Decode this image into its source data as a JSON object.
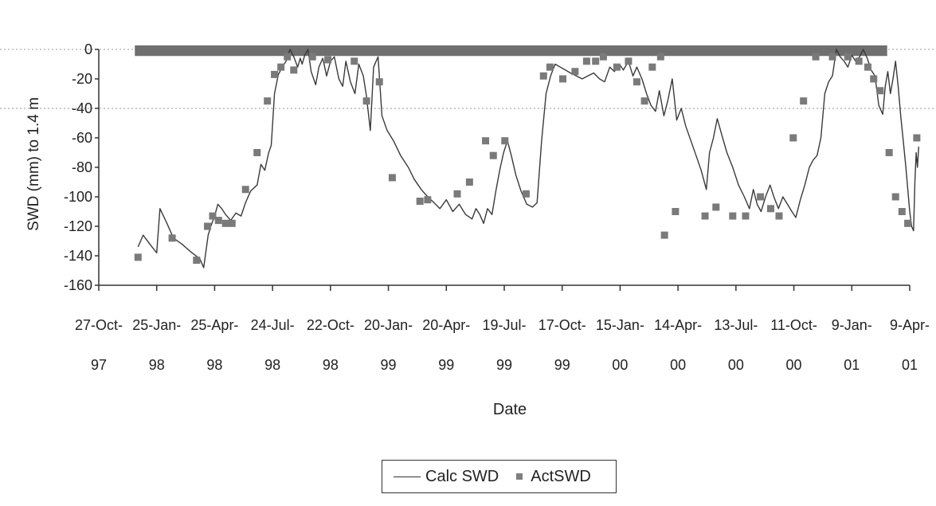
{
  "colors": {
    "calc_line": "#3a3a3a",
    "act_marker": "#7a7a7a",
    "band": "#6f6f6f",
    "axis": "#333333",
    "grid": "#999999"
  },
  "chart_data": {
    "type": "line",
    "title": "",
    "xlabel": "Date",
    "ylabel": "SWD (mm) to 1.4 m",
    "x_tick_labels": [
      [
        "27-Oct-",
        "97"
      ],
      [
        "25-Jan-",
        "98"
      ],
      [
        "25-Apr-",
        "98"
      ],
      [
        "24-Jul-",
        "98"
      ],
      [
        "22-Oct-",
        "98"
      ],
      [
        "20-Jan-",
        "99"
      ],
      [
        "20-Apr-",
        "99"
      ],
      [
        "19-Jul-",
        "99"
      ],
      [
        "17-Oct-",
        "99"
      ],
      [
        "15-Jan-",
        "00"
      ],
      [
        "14-Apr-",
        "00"
      ],
      [
        "13-Jul-",
        "00"
      ],
      [
        "11-Oct-",
        "00"
      ],
      [
        "9-Jan-",
        "01"
      ],
      [
        "9-Apr-",
        "01"
      ]
    ],
    "y_ticks": [
      0,
      -20,
      -40,
      -60,
      -80,
      -100,
      -120,
      -140,
      -160
    ],
    "ylim": [
      -160,
      0
    ],
    "xlim": [
      "1997-10-27",
      "2001-04-09"
    ],
    "legend_position": "bottom",
    "band": {
      "from": "1997-12-22",
      "to": "2001-03-05",
      "y_top": 0,
      "y_bottom": -5
    },
    "series": [
      {
        "name": "Calc SWD",
        "style": "line",
        "points": [
          [
            "1997-12-27",
            -134
          ],
          [
            "1998-01-04",
            -126
          ],
          [
            "1998-01-16",
            -133
          ],
          [
            "1998-01-25",
            -138
          ],
          [
            "1998-01-30",
            -108
          ],
          [
            "1998-02-10",
            -118
          ],
          [
            "1998-02-20",
            -128
          ],
          [
            "1998-03-05",
            -132
          ],
          [
            "1998-03-18",
            -137
          ],
          [
            "1998-04-02",
            -142
          ],
          [
            "1998-04-08",
            -148
          ],
          [
            "1998-04-15",
            -126
          ],
          [
            "1998-04-19",
            -120
          ],
          [
            "1998-04-25",
            -113
          ],
          [
            "1998-04-30",
            -105
          ],
          [
            "1998-05-06",
            -108
          ],
          [
            "1998-05-12",
            -112
          ],
          [
            "1998-05-20",
            -116
          ],
          [
            "1998-05-28",
            -111
          ],
          [
            "1998-06-05",
            -113
          ],
          [
            "1998-06-12",
            -104
          ],
          [
            "1998-06-20",
            -96
          ],
          [
            "1998-06-30",
            -92
          ],
          [
            "1998-07-06",
            -78
          ],
          [
            "1998-07-12",
            -82
          ],
          [
            "1998-07-18",
            -70
          ],
          [
            "1998-07-22",
            -65
          ],
          [
            "1998-07-27",
            -30
          ],
          [
            "1998-08-02",
            -17
          ],
          [
            "1998-08-08",
            -12
          ],
          [
            "1998-08-14",
            -8
          ],
          [
            "1998-08-20",
            0
          ],
          [
            "1998-08-26",
            -5
          ],
          [
            "1998-09-01",
            -12
          ],
          [
            "1998-09-05",
            -6
          ],
          [
            "1998-09-08",
            -10
          ],
          [
            "1998-09-12",
            -4
          ],
          [
            "1998-09-17",
            0
          ],
          [
            "1998-09-22",
            -15
          ],
          [
            "1998-09-29",
            -24
          ],
          [
            "1998-10-04",
            -12
          ],
          [
            "1998-10-10",
            -6
          ],
          [
            "1998-10-16",
            -18
          ],
          [
            "1998-10-22",
            -8
          ],
          [
            "1998-10-28",
            -5
          ],
          [
            "1998-11-04",
            -20
          ],
          [
            "1998-11-10",
            -25
          ],
          [
            "1998-11-15",
            -8
          ],
          [
            "1998-11-22",
            -22
          ],
          [
            "1998-11-29",
            -30
          ],
          [
            "1998-12-05",
            -10
          ],
          [
            "1998-12-12",
            -18
          ],
          [
            "1998-12-17",
            -32
          ],
          [
            "1998-12-23",
            -55
          ],
          [
            "1998-12-28",
            -12
          ],
          [
            "1999-01-04",
            -5
          ],
          [
            "1999-01-10",
            -45
          ],
          [
            "1999-01-18",
            -55
          ],
          [
            "1999-01-28",
            -62
          ],
          [
            "1999-02-08",
            -72
          ],
          [
            "1999-02-20",
            -80
          ],
          [
            "1999-03-01",
            -88
          ],
          [
            "1999-03-12",
            -95
          ],
          [
            "1999-03-22",
            -100
          ],
          [
            "1999-04-01",
            -104
          ],
          [
            "1999-04-10",
            -108
          ],
          [
            "1999-04-20",
            -102
          ],
          [
            "1999-04-30",
            -110
          ],
          [
            "1999-05-10",
            -105
          ],
          [
            "1999-05-20",
            -112
          ],
          [
            "1999-05-30",
            -115
          ],
          [
            "1999-06-05",
            -108
          ],
          [
            "1999-06-11",
            -112
          ],
          [
            "1999-06-17",
            -118
          ],
          [
            "1999-06-23",
            -108
          ],
          [
            "1999-06-30",
            -112
          ],
          [
            "1999-07-06",
            -96
          ],
          [
            "1999-07-12",
            -82
          ],
          [
            "1999-07-18",
            -70
          ],
          [
            "1999-07-24",
            -62
          ],
          [
            "1999-07-30",
            -72
          ],
          [
            "1999-08-06",
            -85
          ],
          [
            "1999-08-14",
            -96
          ],
          [
            "1999-08-23",
            -105
          ],
          [
            "1999-09-01",
            -107
          ],
          [
            "1999-09-08",
            -104
          ],
          [
            "1999-09-15",
            -62
          ],
          [
            "1999-09-22",
            -30
          ],
          [
            "1999-09-29",
            -18
          ],
          [
            "1999-10-06",
            -10
          ],
          [
            "1999-10-14",
            -12
          ],
          [
            "1999-10-22",
            -14
          ],
          [
            "1999-10-30",
            -16
          ],
          [
            "1999-11-08",
            -18
          ],
          [
            "1999-11-17",
            -20
          ],
          [
            "1999-11-26",
            -18
          ],
          [
            "1999-12-05",
            -16
          ],
          [
            "1999-12-14",
            -20
          ],
          [
            "1999-12-22",
            -22
          ],
          [
            "1999-12-30",
            -12
          ],
          [
            "2000-01-06",
            -15
          ],
          [
            "2000-01-14",
            -10
          ],
          [
            "2000-01-20",
            -14
          ],
          [
            "2000-01-28",
            -8
          ],
          [
            "2000-02-04",
            -18
          ],
          [
            "2000-02-10",
            -12
          ],
          [
            "2000-02-18",
            -20
          ],
          [
            "2000-02-25",
            -30
          ],
          [
            "2000-03-03",
            -38
          ],
          [
            "2000-03-10",
            -42
          ],
          [
            "2000-03-16",
            -28
          ],
          [
            "2000-03-23",
            -45
          ],
          [
            "2000-03-29",
            -35
          ],
          [
            "2000-04-05",
            -20
          ],
          [
            "2000-04-12",
            -48
          ],
          [
            "2000-04-19",
            -40
          ],
          [
            "2000-04-26",
            -52
          ],
          [
            "2000-05-04",
            -62
          ],
          [
            "2000-05-12",
            -72
          ],
          [
            "2000-05-20",
            -82
          ],
          [
            "2000-05-28",
            -95
          ],
          [
            "2000-06-02",
            -70
          ],
          [
            "2000-06-08",
            -60
          ],
          [
            "2000-06-14",
            -47
          ],
          [
            "2000-06-21",
            -58
          ],
          [
            "2000-06-29",
            -70
          ],
          [
            "2000-07-08",
            -80
          ],
          [
            "2000-07-17",
            -92
          ],
          [
            "2000-07-26",
            -100
          ],
          [
            "2000-08-03",
            -108
          ],
          [
            "2000-08-09",
            -95
          ],
          [
            "2000-08-15",
            -105
          ],
          [
            "2000-08-21",
            -110
          ],
          [
            "2000-08-28",
            -100
          ],
          [
            "2000-09-04",
            -92
          ],
          [
            "2000-09-10",
            -100
          ],
          [
            "2000-09-17",
            -108
          ],
          [
            "2000-09-24",
            -100
          ],
          [
            "2000-10-01",
            -105
          ],
          [
            "2000-10-08",
            -110
          ],
          [
            "2000-10-14",
            -114
          ],
          [
            "2000-10-21",
            -102
          ],
          [
            "2000-10-28",
            -92
          ],
          [
            "2000-11-04",
            -80
          ],
          [
            "2000-11-10",
            -75
          ],
          [
            "2000-11-16",
            -72
          ],
          [
            "2000-11-22",
            -60
          ],
          [
            "2000-11-28",
            -30
          ],
          [
            "2000-12-04",
            -22
          ],
          [
            "2000-12-10",
            -18
          ],
          [
            "2000-12-16",
            0
          ],
          [
            "2000-12-22",
            -5
          ],
          [
            "2000-12-28",
            -8
          ],
          [
            "2001-01-03",
            -12
          ],
          [
            "2001-01-09",
            -4
          ],
          [
            "2001-01-15",
            -8
          ],
          [
            "2001-01-21",
            -5
          ],
          [
            "2001-01-27",
            0
          ],
          [
            "2001-02-02",
            -6
          ],
          [
            "2001-02-08",
            -14
          ],
          [
            "2001-02-14",
            -18
          ],
          [
            "2001-02-20",
            -38
          ],
          [
            "2001-02-26",
            -44
          ],
          [
            "2001-03-02",
            -25
          ],
          [
            "2001-03-06",
            -15
          ],
          [
            "2001-03-10",
            -30
          ],
          [
            "2001-03-14",
            -20
          ],
          [
            "2001-03-18",
            -8
          ],
          [
            "2001-03-22",
            -25
          ],
          [
            "2001-03-26",
            -45
          ],
          [
            "2001-03-30",
            -62
          ],
          [
            "2001-04-03",
            -80
          ],
          [
            "2001-04-06",
            -95
          ],
          [
            "2001-04-09",
            -110
          ],
          [
            "2001-04-12",
            -120
          ],
          [
            "2001-04-15",
            -123
          ],
          [
            "2001-04-17",
            -90
          ],
          [
            "2001-04-19",
            -70
          ],
          [
            "2001-04-21",
            -80
          ],
          [
            "2001-04-23",
            -66
          ]
        ]
      },
      {
        "name": "ActSWD",
        "style": "marker",
        "points": [
          [
            "1997-12-27",
            -141
          ],
          [
            "1998-02-18",
            -128
          ],
          [
            "1998-03-28",
            -143
          ],
          [
            "1998-04-14",
            -120
          ],
          [
            "1998-04-22",
            -113
          ],
          [
            "1998-05-01",
            -116
          ],
          [
            "1998-05-12",
            -118
          ],
          [
            "1998-05-22",
            -118
          ],
          [
            "1998-06-12",
            -95
          ],
          [
            "1998-06-30",
            -70
          ],
          [
            "1998-07-16",
            -35
          ],
          [
            "1998-07-27",
            -17
          ],
          [
            "1998-08-06",
            -12
          ],
          [
            "1998-08-16",
            -5
          ],
          [
            "1998-08-26",
            -14
          ],
          [
            "1998-09-24",
            -5
          ],
          [
            "1998-10-18",
            -7
          ],
          [
            "1998-11-28",
            -8
          ],
          [
            "1998-12-17",
            -35
          ],
          [
            "1999-01-06",
            -22
          ],
          [
            "1999-01-26",
            -87
          ],
          [
            "1999-03-10",
            -103
          ],
          [
            "1999-03-22",
            -102
          ],
          [
            "1999-05-07",
            -98
          ],
          [
            "1999-05-26",
            -90
          ],
          [
            "1999-06-20",
            -62
          ],
          [
            "1999-07-02",
            -72
          ],
          [
            "1999-07-20",
            -62
          ],
          [
            "1999-08-22",
            -98
          ],
          [
            "1999-09-18",
            -18
          ],
          [
            "1999-09-28",
            -12
          ],
          [
            "1999-10-18",
            -20
          ],
          [
            "1999-11-06",
            -15
          ],
          [
            "1999-11-24",
            -8
          ],
          [
            "1999-12-08",
            -8
          ],
          [
            "1999-12-20",
            -5
          ],
          [
            "2000-01-10",
            -12
          ],
          [
            "2000-01-28",
            -8
          ],
          [
            "2000-02-10",
            -22
          ],
          [
            "2000-02-22",
            -35
          ],
          [
            "2000-03-05",
            -12
          ],
          [
            "2000-03-18",
            -5
          ],
          [
            "2000-03-24",
            -126
          ],
          [
            "2000-04-10",
            -110
          ],
          [
            "2000-05-26",
            -113
          ],
          [
            "2000-06-12",
            -107
          ],
          [
            "2000-07-08",
            -113
          ],
          [
            "2000-07-28",
            -113
          ],
          [
            "2000-08-20",
            -100
          ],
          [
            "2000-09-05",
            -108
          ],
          [
            "2000-09-18",
            -113
          ],
          [
            "2000-10-10",
            -60
          ],
          [
            "2000-10-26",
            -35
          ],
          [
            "2000-11-14",
            -5
          ],
          [
            "2000-12-10",
            -5
          ],
          [
            "2001-01-03",
            -5
          ],
          [
            "2001-01-20",
            -8
          ],
          [
            "2001-02-03",
            -12
          ],
          [
            "2001-02-12",
            -20
          ],
          [
            "2001-02-22",
            -28
          ],
          [
            "2001-03-08",
            -70
          ],
          [
            "2001-03-18",
            -100
          ],
          [
            "2001-03-28",
            -110
          ],
          [
            "2001-04-06",
            -118
          ],
          [
            "2001-04-20",
            -60
          ]
        ]
      }
    ]
  }
}
